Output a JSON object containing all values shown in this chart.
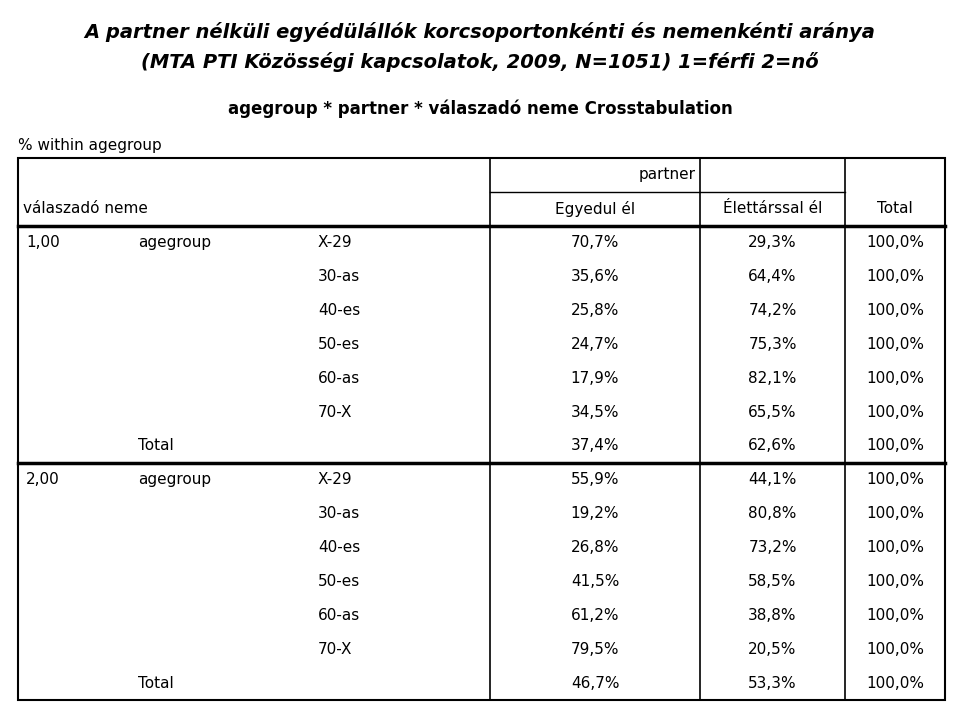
{
  "title_line1": "A partner nélküli egyédülállók korcsoportonkénti és nemenkénti aránya",
  "title_line2": "(MTA PTI Közösségi kapcsolatok, 2009, N=1051) 1=férfi 2=nő",
  "subtitle": "agegroup * partner * válaszadó neme Crosstabulation",
  "within_label": "% within agegroup",
  "col_header_span": "partner",
  "col_headers": [
    "Egyedul él",
    "Élettárssal él",
    "Total"
  ],
  "row_header1": "válaszadó neme",
  "section1_label": "1,00",
  "section1_sub_label": "agegroup",
  "section1_rows": [
    [
      "X-29",
      "70,7%",
      "29,3%",
      "100,0%"
    ],
    [
      "30-as",
      "35,6%",
      "64,4%",
      "100,0%"
    ],
    [
      "40-es",
      "25,8%",
      "74,2%",
      "100,0%"
    ],
    [
      "50-es",
      "24,7%",
      "75,3%",
      "100,0%"
    ],
    [
      "60-as",
      "17,9%",
      "82,1%",
      "100,0%"
    ],
    [
      "70-X",
      "34,5%",
      "65,5%",
      "100,0%"
    ]
  ],
  "section1_total": [
    "37,4%",
    "62,6%",
    "100,0%"
  ],
  "section2_label": "2,00",
  "section2_sub_label": "agegroup",
  "section2_rows": [
    [
      "X-29",
      "55,9%",
      "44,1%",
      "100,0%"
    ],
    [
      "30-as",
      "19,2%",
      "80,8%",
      "100,0%"
    ],
    [
      "40-es",
      "26,8%",
      "73,2%",
      "100,0%"
    ],
    [
      "50-es",
      "41,5%",
      "58,5%",
      "100,0%"
    ],
    [
      "60-as",
      "61,2%",
      "38,8%",
      "100,0%"
    ],
    [
      "70-X",
      "79,5%",
      "20,5%",
      "100,0%"
    ]
  ],
  "section2_total": [
    "46,7%",
    "53,3%",
    "100,0%"
  ],
  "bg_color": "#ffffff",
  "text_color": "#000000",
  "title_fontsize": 14,
  "subtitle_fontsize": 12,
  "table_fontsize": 11
}
